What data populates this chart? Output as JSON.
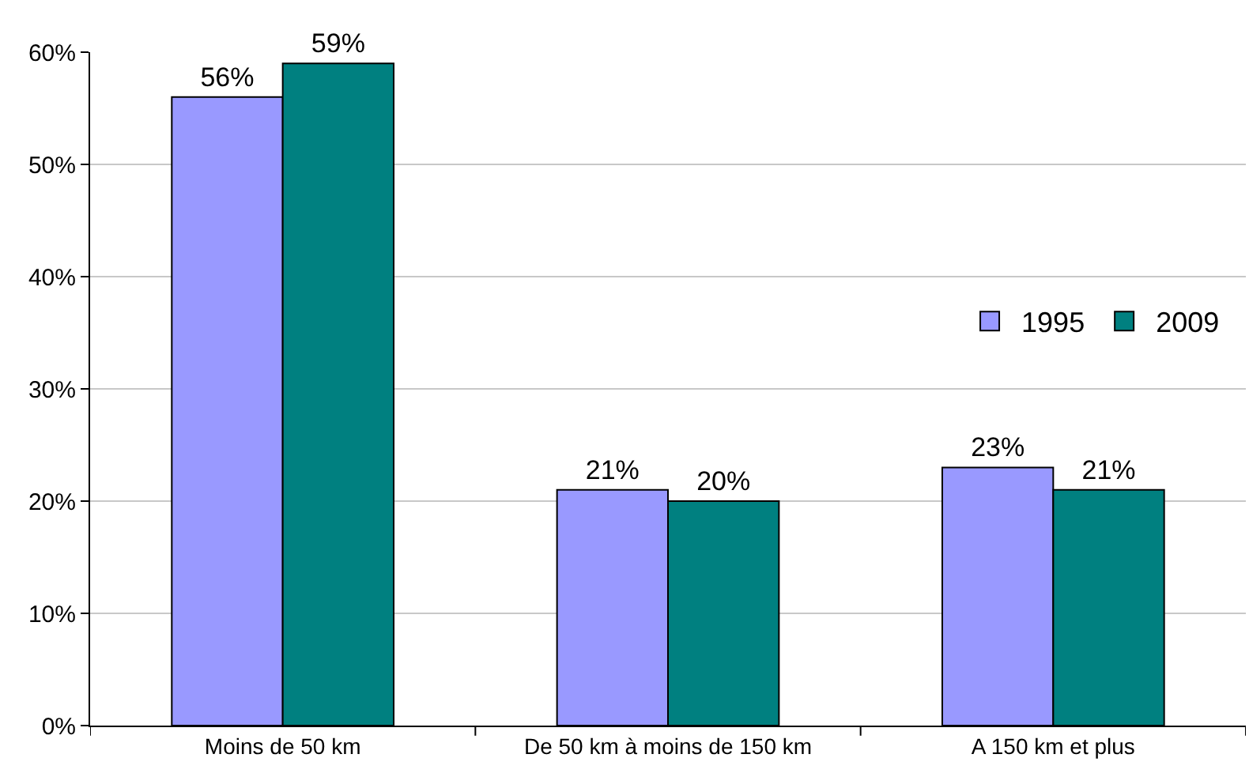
{
  "chart_data": {
    "type": "bar",
    "categories": [
      "Moins de 50 km",
      "De 50 km à moins de 150 km",
      "A 150 km et plus"
    ],
    "series": [
      {
        "name": "1995",
        "color": "#9999ff",
        "values": [
          56,
          21,
          23
        ],
        "value_labels": [
          "56%",
          "21%",
          "23%"
        ]
      },
      {
        "name": "2009",
        "color": "#008080",
        "values": [
          59,
          20,
          21
        ],
        "value_labels": [
          "59%",
          "20%",
          "21%"
        ]
      }
    ],
    "ylim": [
      0,
      60
    ],
    "yticks": [
      {
        "value": 0,
        "label": "0%"
      },
      {
        "value": 10,
        "label": "10%"
      },
      {
        "value": 20,
        "label": "20%"
      },
      {
        "value": 30,
        "label": "30%"
      },
      {
        "value": 40,
        "label": "40%"
      },
      {
        "value": 50,
        "label": "50%"
      },
      {
        "value": 60,
        "label": "60%"
      }
    ],
    "grid": "y",
    "legend": "right"
  }
}
